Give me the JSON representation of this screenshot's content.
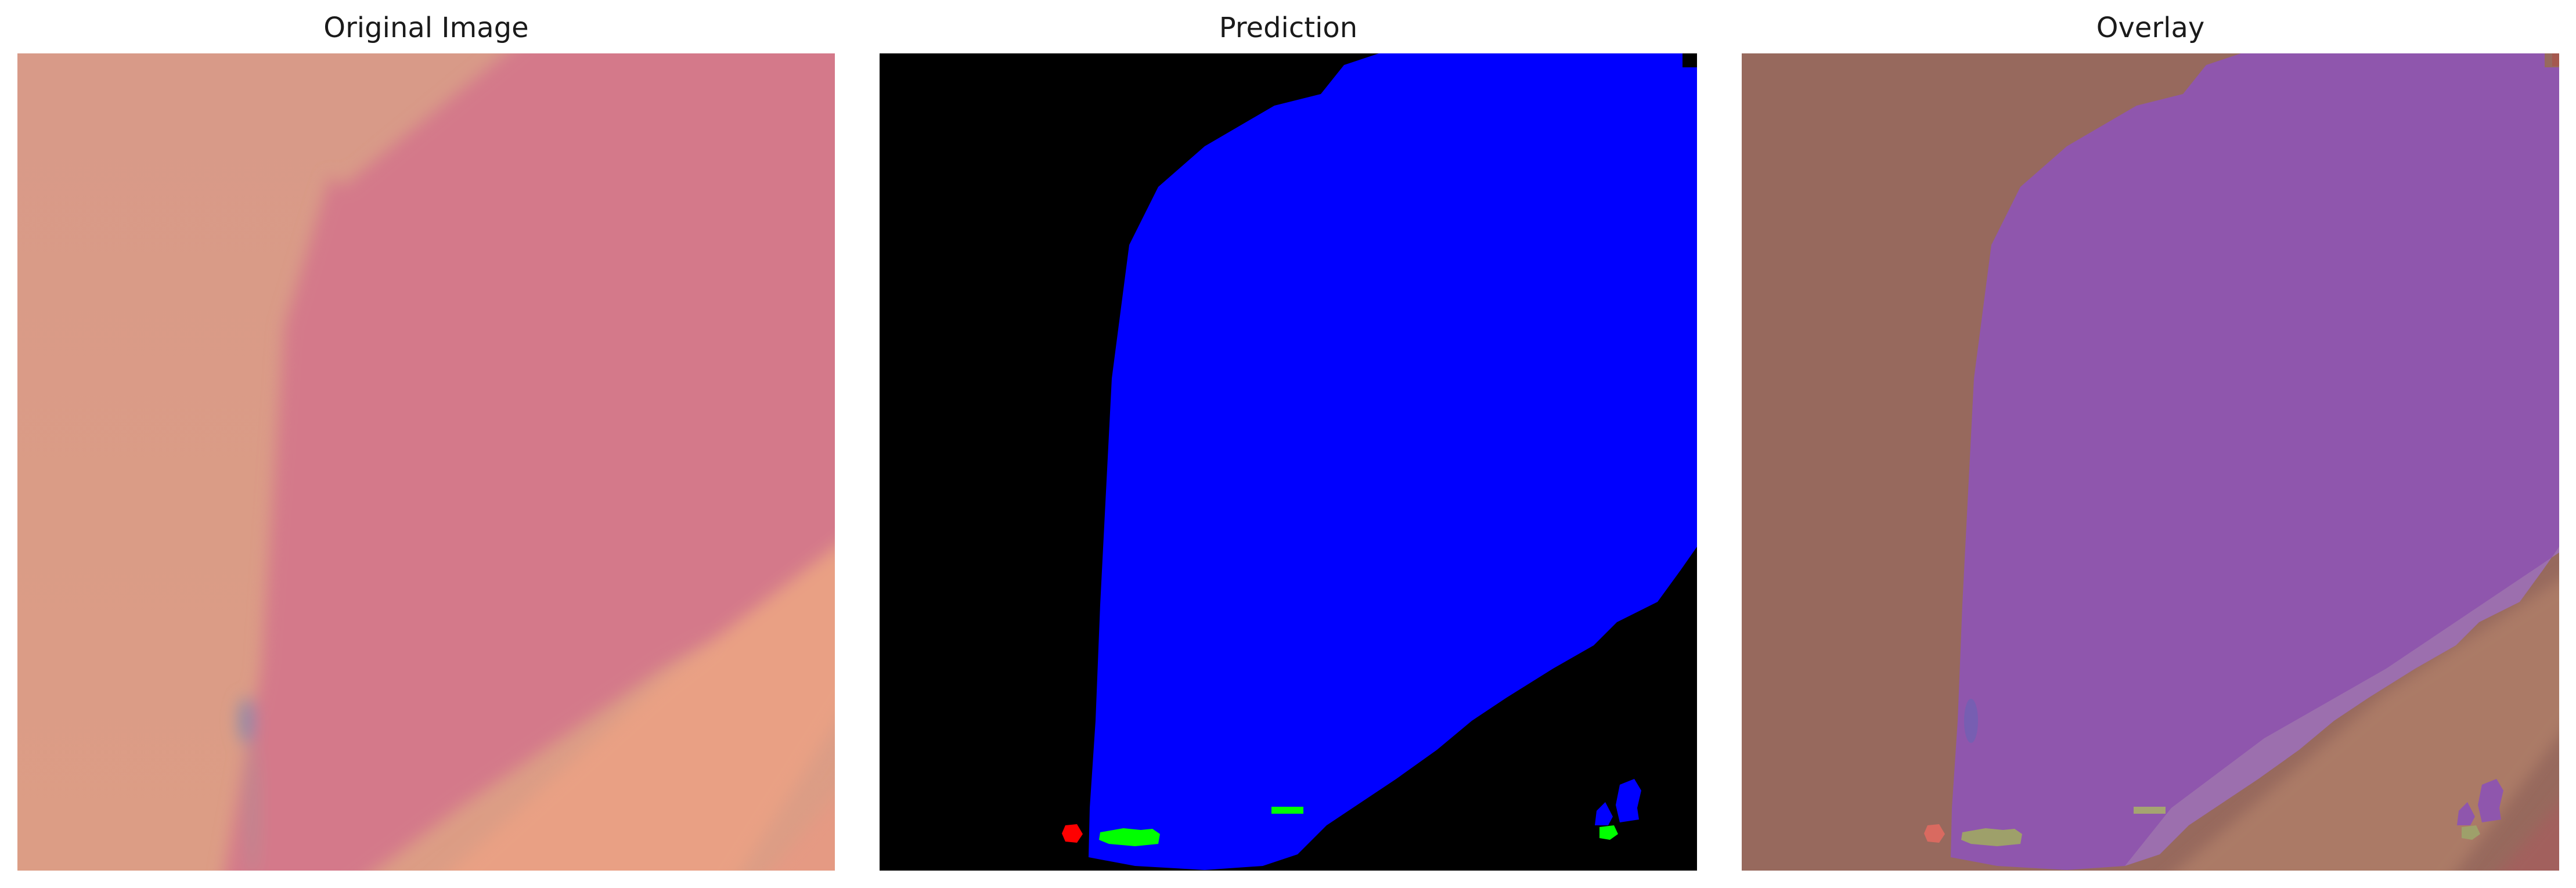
{
  "panels": [
    {
      "title": "Original Image"
    },
    {
      "title": "Prediction"
    },
    {
      "title": "Overlay"
    }
  ],
  "colors": {
    "background_peach": "#d99b86",
    "flake_pink": "#d57a82",
    "stripe_salmon": "#e8a285",
    "mask_background": "#000000",
    "mask_blue": "#0000ff",
    "mask_green": "#00ff00",
    "mask_red": "#ff0000",
    "overlay_brown": "#96695e",
    "overlay_purple": "#8f55ab"
  }
}
